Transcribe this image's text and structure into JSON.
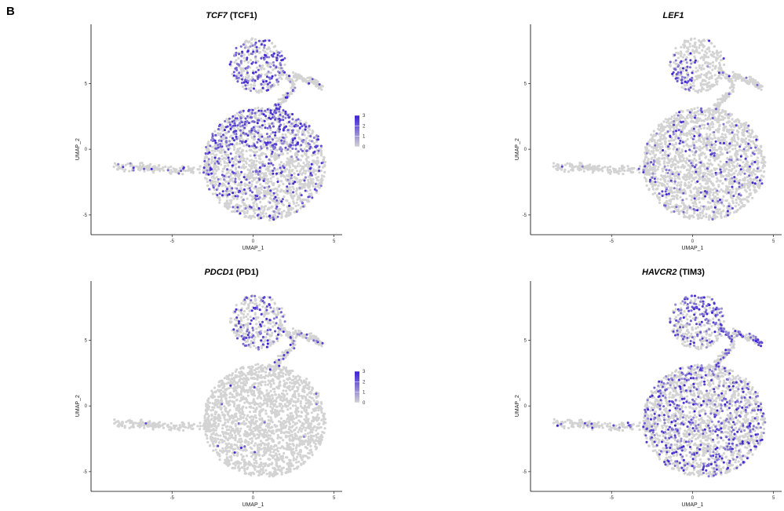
{
  "panel_label": "B",
  "colors": {
    "low": "#d3d3d3",
    "high": "#3a1fd6"
  },
  "chart_data": [
    {
      "type": "scatter",
      "title": "TCF7 (TCF1)",
      "title_gene": "TCF7",
      "title_suffix": " (TCF1)",
      "xlabel": "UMAP_1",
      "ylabel": "UMAP_2",
      "xticks": [
        -5,
        0,
        5
      ],
      "yticks": [
        5,
        0,
        -5
      ],
      "xlim": [
        -10,
        5.5
      ],
      "ylim": [
        -6.5,
        9.5
      ],
      "legend": {
        "position": "right",
        "labels": [
          "3",
          "2",
          "1",
          "0"
        ],
        "range": [
          0,
          3
        ]
      },
      "expression": {
        "clusters": [
          "upper",
          "upper-left-main"
        ],
        "level": 0.35
      }
    },
    {
      "type": "scatter",
      "title": "LEF1",
      "title_gene": "LEF1",
      "title_suffix": "",
      "xlabel": "UMAP_1",
      "ylabel": "UMAP_2",
      "xticks": [
        -5,
        0,
        5
      ],
      "yticks": [
        5,
        0,
        -5
      ],
      "xlim": [
        -10,
        5.5
      ],
      "ylim": [
        -6.5,
        9.5
      ],
      "legend": null,
      "expression": {
        "clusters": [
          "upper-stem",
          "main"
        ],
        "level": 0.1
      }
    },
    {
      "type": "scatter",
      "title": "PDCD1 (PD1)",
      "title_gene": "PDCD1",
      "title_suffix": " (PD1)",
      "xlabel": "UMAP_1",
      "ylabel": "UMAP_2",
      "xticks": [
        -5,
        0,
        5
      ],
      "yticks": [
        5,
        0,
        -5
      ],
      "xlim": [
        -10,
        5.5
      ],
      "ylim": [
        -6.5,
        9.5
      ],
      "legend": {
        "position": "right",
        "labels": [
          "3",
          "2",
          "1",
          "0"
        ],
        "range": [
          0,
          3
        ]
      },
      "expression": {
        "clusters": [
          "upper"
        ],
        "level": 0.2
      }
    },
    {
      "type": "scatter",
      "title": "HAVCR2 (TIM3)",
      "title_gene": "HAVCR2",
      "title_suffix": " (TIM3)",
      "xlabel": "UMAP_1",
      "ylabel": "UMAP_2",
      "xticks": [
        -5,
        0,
        5
      ],
      "yticks": [
        5,
        0,
        -5
      ],
      "xlim": [
        -10,
        5.5
      ],
      "ylim": [
        -6.5,
        9.5
      ],
      "legend": null,
      "expression": {
        "clusters": [
          "upper-strong",
          "main"
        ],
        "level": 0.2
      }
    }
  ]
}
